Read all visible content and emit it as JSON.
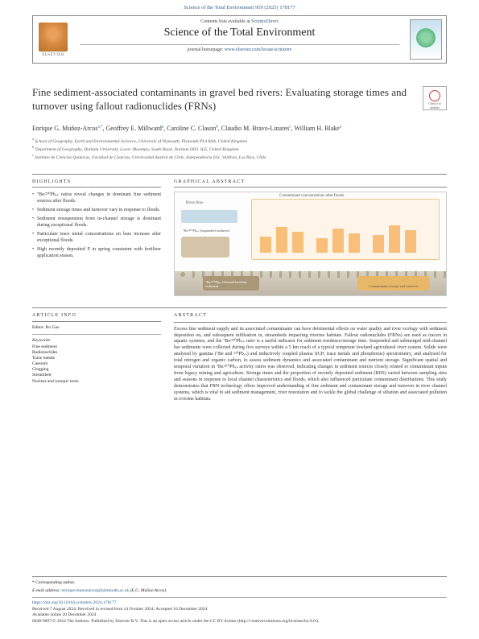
{
  "header": {
    "top_citation": "Science of the Total Environment 959 (2025) 178177",
    "contents_prefix": "Contents lists available at ",
    "contents_link": "ScienceDirect",
    "journal_name": "Science of the Total Environment",
    "homepage_prefix": "journal homepage: ",
    "homepage_link": "www.elsevier.com/locate/scitotenv",
    "publisher_label": "ELSEVIER",
    "check_label": "Check for updates"
  },
  "title": "Fine sediment-associated contaminants in gravel bed rivers: Evaluating storage times and turnover using fallout radionuclides (FRNs)",
  "authors_html": "Enrique G. Muñoz-Arcos",
  "authors": [
    {
      "name": "Enrique G. Muñoz-Arcos",
      "sup": "a,*"
    },
    {
      "name": "Geoffrey E. Millward",
      "sup": "a"
    },
    {
      "name": "Caroline C. Clason",
      "sup": "b"
    },
    {
      "name": "Claudio M. Bravo-Linares",
      "sup": "c"
    },
    {
      "name": "William H. Blake",
      "sup": "a"
    }
  ],
  "affiliations": [
    {
      "sup": "a",
      "text": "School of Geography, Earth and Environmental Sciences, University of Plymouth, Plymouth PL4 8AA, United Kingdom"
    },
    {
      "sup": "b",
      "text": "Department of Geography, Durham University, Lower Mountjoy, South Road, Durham DH1 3LE, United Kingdom"
    },
    {
      "sup": "c",
      "text": "Instituto de Ciencias Químicas, Facultad de Ciencias, Universidad Austral de Chile, Independencia 631, Valdivia, Los Ríos, Chile"
    }
  ],
  "highlights": {
    "head": "HIGHLIGHTS",
    "items": [
      "⁷Be/²¹⁰Pbₓₛ ratios reveal changes in dominant fine sediment sources after floods.",
      "Sediment storage times and turnover vary in response to floods.",
      "Sediment resuspension from in-channel storage is dominant during exceptional floods.",
      "Particulate trace metal concentrations on bars increase after exceptional floods.",
      "High recently deposited P in spring consistent with fertiliser application season."
    ]
  },
  "graphical": {
    "head": "GRAPHICAL ABSTRACT",
    "river_flow": "River flow",
    "contam_label": "Contaminant concentrations after floods",
    "suspended": "⁷Be/²¹⁰Pbₓₛ Suspended sediment",
    "channel": "⁷Be/²¹⁰Pbₓₛ Channel bed fine sediment",
    "storage": "Contaminant storage and turnover",
    "colors": {
      "river": "#c8dce8",
      "contam_bg": "#fef5e8",
      "sediment_box": "#d4c4a8",
      "channel_box": "#a89878",
      "storage_box": "#e8b868",
      "bars": "#f5a84d"
    }
  },
  "article_info": {
    "head": "ARTICLE INFO",
    "editor_label": "Editor: Bo Gao",
    "keywords_head": "Keywords:",
    "keywords": [
      "Fine sediment",
      "Radionuclides",
      "Trace metals",
      "Caesium",
      "Clogging",
      "Streambed",
      "Nuclear and isotopic tools"
    ]
  },
  "abstract": {
    "head": "ABSTRACT",
    "text": "Excess fine sediment supply and its associated contaminants can have detrimental effects on water quality and river ecology with sediment deposition on, and subsequent infiltration in, streambeds impacting riverine habitats. Fallout radionuclides (FRNs) are used as tracers in aquatic systems, and the ⁷Be/²¹⁰Pbₓₛ ratio is a useful indicator for sediment residence/storage time. Suspended and submerged mid-channel bar sediments were collected during five surveys within a 5 km reach of a typical temperate lowland agricultural river system. Solids were analysed by gamma (⁷Be and ²¹⁰Pbₓₛ) and inductively coupled plasma (ICP; trace metals and phosphorus) spectrometry, and analysed for total nitrogen and organic carbon, to assess sediment dynamics and associated contaminant and nutrient storage. Significant spatial and temporal variation in ⁷Be/²¹⁰Pbₓₛ activity ratios was observed, indicating changes in sediment sources closely related to contaminant inputs from legacy mining and agriculture. Storage times and the proportion of recently deposited sediment (RDS) varied between sampling sites and seasons in response to local channel characteristics and floods, which also influenced particulate contaminant distributions. This study demonstrates that FRN technology offers improved understanding of fine sediment and contaminant storage and turnover in river channel systems, which is vital to aid sediment management, river restoration and to tackle the global challenge of siltation and associated pollution in riverine habitats."
  },
  "footer": {
    "corr": "* Corresponding author.",
    "email_label": "E-mail address: ",
    "email": "enrique.munozarcos@plymouth.ac.uk",
    "email_suffix": " (E.G. Muñoz-Arcos).",
    "doi": "https://doi.org/10.1016/j.scitotenv.2024.178177",
    "received": "Received 7 August 2024; Received in revised form 14 October 2024; Accepted 16 December 2024",
    "available": "Available online 20 December 2024",
    "copyright": "0048-9697/© 2024 The Authors. Published by Elsevier B.V. This is an open access article under the CC BY license (http://creativecommons.org/licenses/by/4.0/)."
  }
}
